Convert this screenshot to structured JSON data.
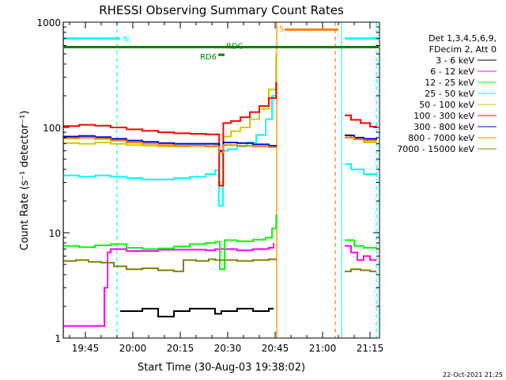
{
  "chart_data": {
    "type": "line",
    "title": "RHESSI Observing Summary Count Rates",
    "xlabel": "Start Time (30-Aug-03 19:38:02)",
    "ylabel": "Count Rate (s⁻¹ detector⁻¹)",
    "y_scale": "log",
    "ylim": [
      1,
      1000
    ],
    "xlim_minutes": [
      0,
      100
    ],
    "x_ticks": [
      {
        "label": "19:45",
        "t": 7
      },
      {
        "label": "20:00",
        "t": 22
      },
      {
        "label": "20:15",
        "t": 37
      },
      {
        "label": "20:30",
        "t": 52
      },
      {
        "label": "20:45",
        "t": 67
      },
      {
        "label": "21:00",
        "t": 82
      },
      {
        "label": "21:15",
        "t": 97
      }
    ],
    "y_ticks": [
      {
        "label": "1",
        "v": 1
      },
      {
        "label": "10",
        "v": 10
      },
      {
        "label": "100",
        "v": 100
      },
      {
        "label": "1000",
        "v": 1000
      }
    ],
    "legend": {
      "header": [
        "Det 1,3,4,5,6,9,",
        "FDecim 2, Att 0"
      ],
      "position": "right"
    },
    "flags": [
      {
        "label": "N",
        "color": "#00ffff",
        "level": 700,
        "segments": [
          [
            0,
            18
          ],
          [
            89,
            100
          ]
        ]
      },
      {
        "label": "S",
        "color": "#ff8000",
        "level": 850,
        "segments": [
          [
            70,
            87
          ]
        ]
      },
      {
        "label": "RDC",
        "color": "#008000",
        "level": 580,
        "segments": [
          [
            0,
            100
          ]
        ]
      },
      {
        "label": "RD6",
        "color": "#008000",
        "level": 490,
        "segments": [
          [
            49,
            51
          ]
        ]
      }
    ],
    "vertical_markers": [
      {
        "t": 0.1,
        "color": "#00ffff",
        "style": "solid"
      },
      {
        "t": 17,
        "color": "#00ffff",
        "style": "dashed"
      },
      {
        "t": 67.5,
        "color": "#ff8000",
        "style": "solid"
      },
      {
        "t": 86,
        "color": "#ff8000",
        "style": "dashed"
      },
      {
        "t": 88,
        "color": "#00ffff",
        "style": "solid"
      },
      {
        "t": 99,
        "color": "#00ffff",
        "style": "dashed"
      }
    ],
    "series": [
      {
        "name": "3 - 6 keV",
        "color": "#000000",
        "t": [
          18,
          25,
          30,
          35,
          40,
          48,
          50,
          52,
          55,
          60,
          65,
          66.5
        ],
        "v": [
          1.8,
          1.9,
          1.6,
          1.8,
          1.9,
          1.7,
          1.8,
          1.8,
          1.9,
          1.8,
          1.9,
          1.9
        ]
      },
      {
        "name": "6 - 12 keV",
        "color": "#ff00ff",
        "t": [
          0,
          5,
          10,
          12,
          13,
          14,
          15,
          16,
          20,
          30,
          40,
          45,
          48,
          50,
          55,
          60,
          65,
          66.5,
          89,
          91,
          93,
          95,
          97,
          99
        ],
        "v": [
          1.3,
          1.3,
          1.3,
          1.3,
          3,
          6.5,
          7,
          7,
          6.7,
          6.9,
          6.9,
          6.8,
          7,
          7,
          6.8,
          7,
          7.2,
          8,
          7.5,
          6.5,
          5.5,
          6,
          5.5,
          5.5
        ]
      },
      {
        "name": "12 - 25 keV",
        "color": "#00ff00",
        "t": [
          0,
          5,
          10,
          15,
          20,
          25,
          30,
          35,
          40,
          45,
          48,
          49.5,
          51,
          55,
          60,
          64,
          66,
          67.3,
          89,
          92,
          95,
          99
        ],
        "v": [
          7.5,
          7.3,
          7.6,
          7.8,
          7.2,
          7,
          7.1,
          7.4,
          7.8,
          8,
          8.2,
          4.5,
          8.5,
          8.3,
          8.6,
          9,
          11,
          15,
          8.5,
          7.5,
          7.2,
          7
        ]
      },
      {
        "name": "25 - 50 keV",
        "color": "#00ffff",
        "t": [
          0,
          5,
          10,
          15,
          20,
          25,
          30,
          35,
          40,
          45,
          48,
          49.2,
          50.5,
          52,
          55,
          58,
          61,
          64,
          66,
          67.3,
          89,
          91,
          95,
          99
        ],
        "v": [
          35,
          34,
          35,
          34,
          33,
          32,
          32,
          33,
          34,
          36,
          39,
          18,
          60,
          62,
          66,
          72,
          85,
          120,
          200,
          400,
          45,
          40,
          36,
          34
        ]
      },
      {
        "name": "50 - 100 keV",
        "color": "#cccc00",
        "t": [
          0,
          5,
          10,
          15,
          20,
          25,
          30,
          35,
          40,
          45,
          48,
          49.3,
          50.6,
          53,
          56,
          59,
          62,
          65,
          67.3,
          89,
          91,
          95,
          99
        ],
        "v": [
          71,
          70,
          72,
          70,
          68,
          67,
          66,
          66,
          67,
          67,
          68,
          30,
          82,
          92,
          100,
          120,
          150,
          230,
          500,
          85,
          80,
          72,
          70
        ]
      },
      {
        "name": "100 - 300 keV",
        "color": "#ff0000",
        "t": [
          0,
          5,
          10,
          15,
          20,
          25,
          30,
          35,
          40,
          45,
          48,
          49.3,
          50.6,
          53,
          56,
          59,
          62,
          65,
          67.3,
          89,
          91,
          94,
          97,
          99
        ],
        "v": [
          103,
          106,
          104,
          100,
          96,
          93,
          90,
          88,
          87,
          86,
          86,
          28,
          110,
          115,
          125,
          140,
          160,
          190,
          270,
          130,
          118,
          110,
          102,
          100
        ]
      },
      {
        "name": "300 - 800 keV",
        "color": "#0000cc",
        "t": [
          0,
          5,
          10,
          15,
          20,
          25,
          30,
          35,
          40,
          45,
          48,
          49.3,
          50.6,
          55,
          60,
          65,
          67.3,
          89,
          92,
          95,
          99
        ],
        "v": [
          82,
          83,
          81,
          78,
          75,
          73,
          71,
          70,
          70,
          70,
          70,
          60,
          72,
          71,
          69,
          67,
          66,
          84,
          80,
          78,
          77
        ]
      },
      {
        "name": "800 - 7000 keV",
        "color": "#ff8000",
        "t": [
          0,
          5,
          10,
          15,
          20,
          25,
          30,
          35,
          40,
          45,
          48,
          49.3,
          50.6,
          55,
          60,
          65,
          67.3,
          89,
          92,
          95,
          99
        ],
        "v": [
          79,
          80,
          78,
          75,
          72,
          70,
          68,
          67,
          67,
          66,
          66,
          58,
          68,
          67,
          66,
          65,
          64,
          80,
          77,
          75,
          74
        ]
      },
      {
        "name": "7000 - 15000 keV",
        "color": "#808000",
        "t": [
          0,
          4,
          8,
          12,
          16,
          20,
          25,
          30,
          35,
          38,
          42,
          46,
          48,
          50,
          55,
          60,
          65,
          67.3,
          89,
          91,
          94,
          97,
          99
        ],
        "v": [
          5.4,
          5.5,
          5.3,
          5.2,
          4.8,
          4.5,
          4.6,
          4.4,
          4.3,
          5.5,
          5.4,
          5.6,
          5.5,
          5.5,
          5.4,
          5.5,
          5.6,
          5.5,
          4.3,
          4.5,
          4.4,
          4.3,
          4.3
        ]
      }
    ],
    "footer_date": "22-Oct-2021 21:25"
  }
}
